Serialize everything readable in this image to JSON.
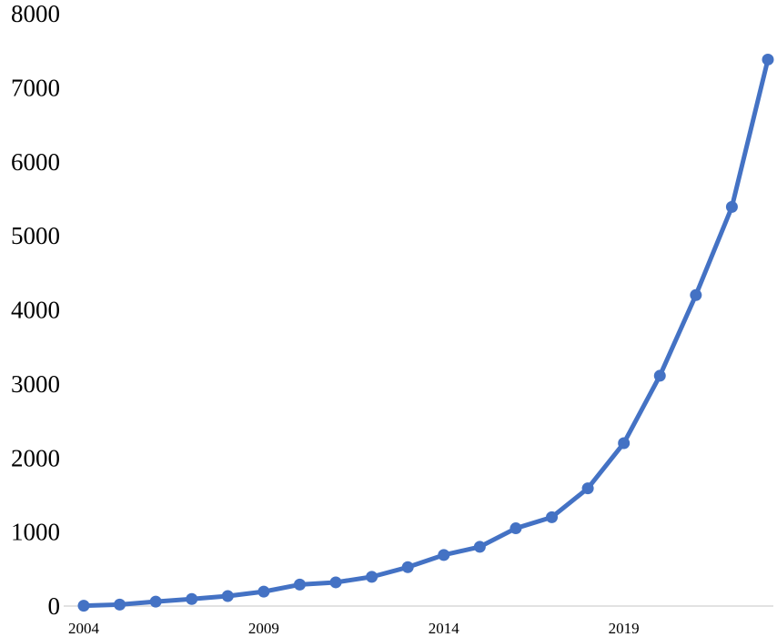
{
  "chart_data": {
    "type": "line",
    "title": "",
    "xlabel": "",
    "ylabel": "",
    "grid": false,
    "legend": "none",
    "xlim": [
      2004,
      2023
    ],
    "ylim": [
      0,
      8000
    ],
    "y_ticks": [
      "0",
      "1000",
      "2000",
      "3000",
      "4000",
      "5000",
      "6000",
      "7000",
      "8000"
    ],
    "x_ticks": [
      "2004",
      "2009",
      "2014",
      "2019"
    ],
    "x": [
      2004,
      2005,
      2006,
      2007,
      2008,
      2009,
      2010,
      2011,
      2012,
      2013,
      2014,
      2015,
      2016,
      2017,
      2018,
      2019,
      2020,
      2021,
      2022,
      2023
    ],
    "series": [
      {
        "color": "#4472C4",
        "values": [
          5,
          20,
          60,
          95,
          135,
          195,
          290,
          320,
          395,
          525,
          690,
          800,
          1050,
          1200,
          1590,
          2200,
          3110,
          4200,
          5390,
          7380
        ]
      }
    ]
  }
}
